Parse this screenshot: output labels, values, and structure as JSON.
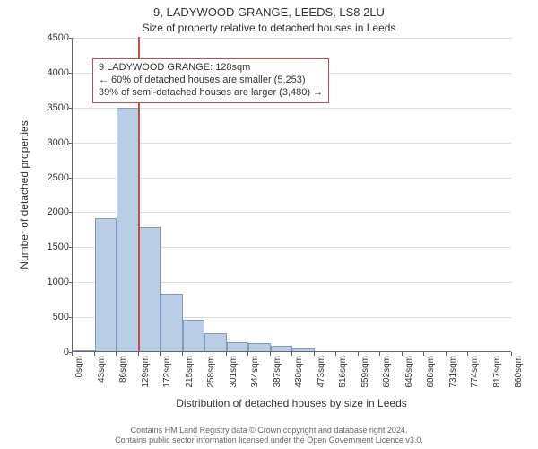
{
  "titles": {
    "main": "9, LADYWOOD GRANGE, LEEDS, LS8 2LU",
    "sub": "Size of property relative to detached houses in Leeds"
  },
  "axes": {
    "ylabel": "Number of detached properties",
    "xlabel": "Distribution of detached houses by size in Leeds",
    "ylim": [
      0,
      4500
    ],
    "ytick_step": 500,
    "xlim": [
      0,
      860
    ],
    "xtick_step": 43,
    "xtick_suffix": "sqm"
  },
  "histogram": {
    "type": "histogram",
    "bar_color": "#b9cde5",
    "bar_border": "#7f9bc1",
    "bin_width": 43,
    "bins": [
      0,
      43,
      86,
      129,
      172,
      215,
      258,
      301,
      344,
      387,
      430,
      473
    ],
    "counts": [
      0,
      1900,
      3480,
      1770,
      820,
      450,
      260,
      130,
      110,
      80,
      45
    ]
  },
  "marker": {
    "x": 128,
    "color": "#c0504d"
  },
  "annotation": {
    "border_color": "#c0504d",
    "bg_color": "#ffffff",
    "lines": [
      "9 LADYWOOD GRANGE: 128sqm",
      "← 60% of detached houses are smaller (5,253)",
      "39% of semi-detached houses are larger (3,480) →"
    ]
  },
  "grid": {
    "color": "#dddddd"
  },
  "footer": {
    "line1": "Contains HM Land Registry data © Crown copyright and database right 2024.",
    "line2": "Contains public sector information licensed under the Open Government Licence v3.0.",
    "color": "#666666"
  },
  "background_color": "#ffffff"
}
